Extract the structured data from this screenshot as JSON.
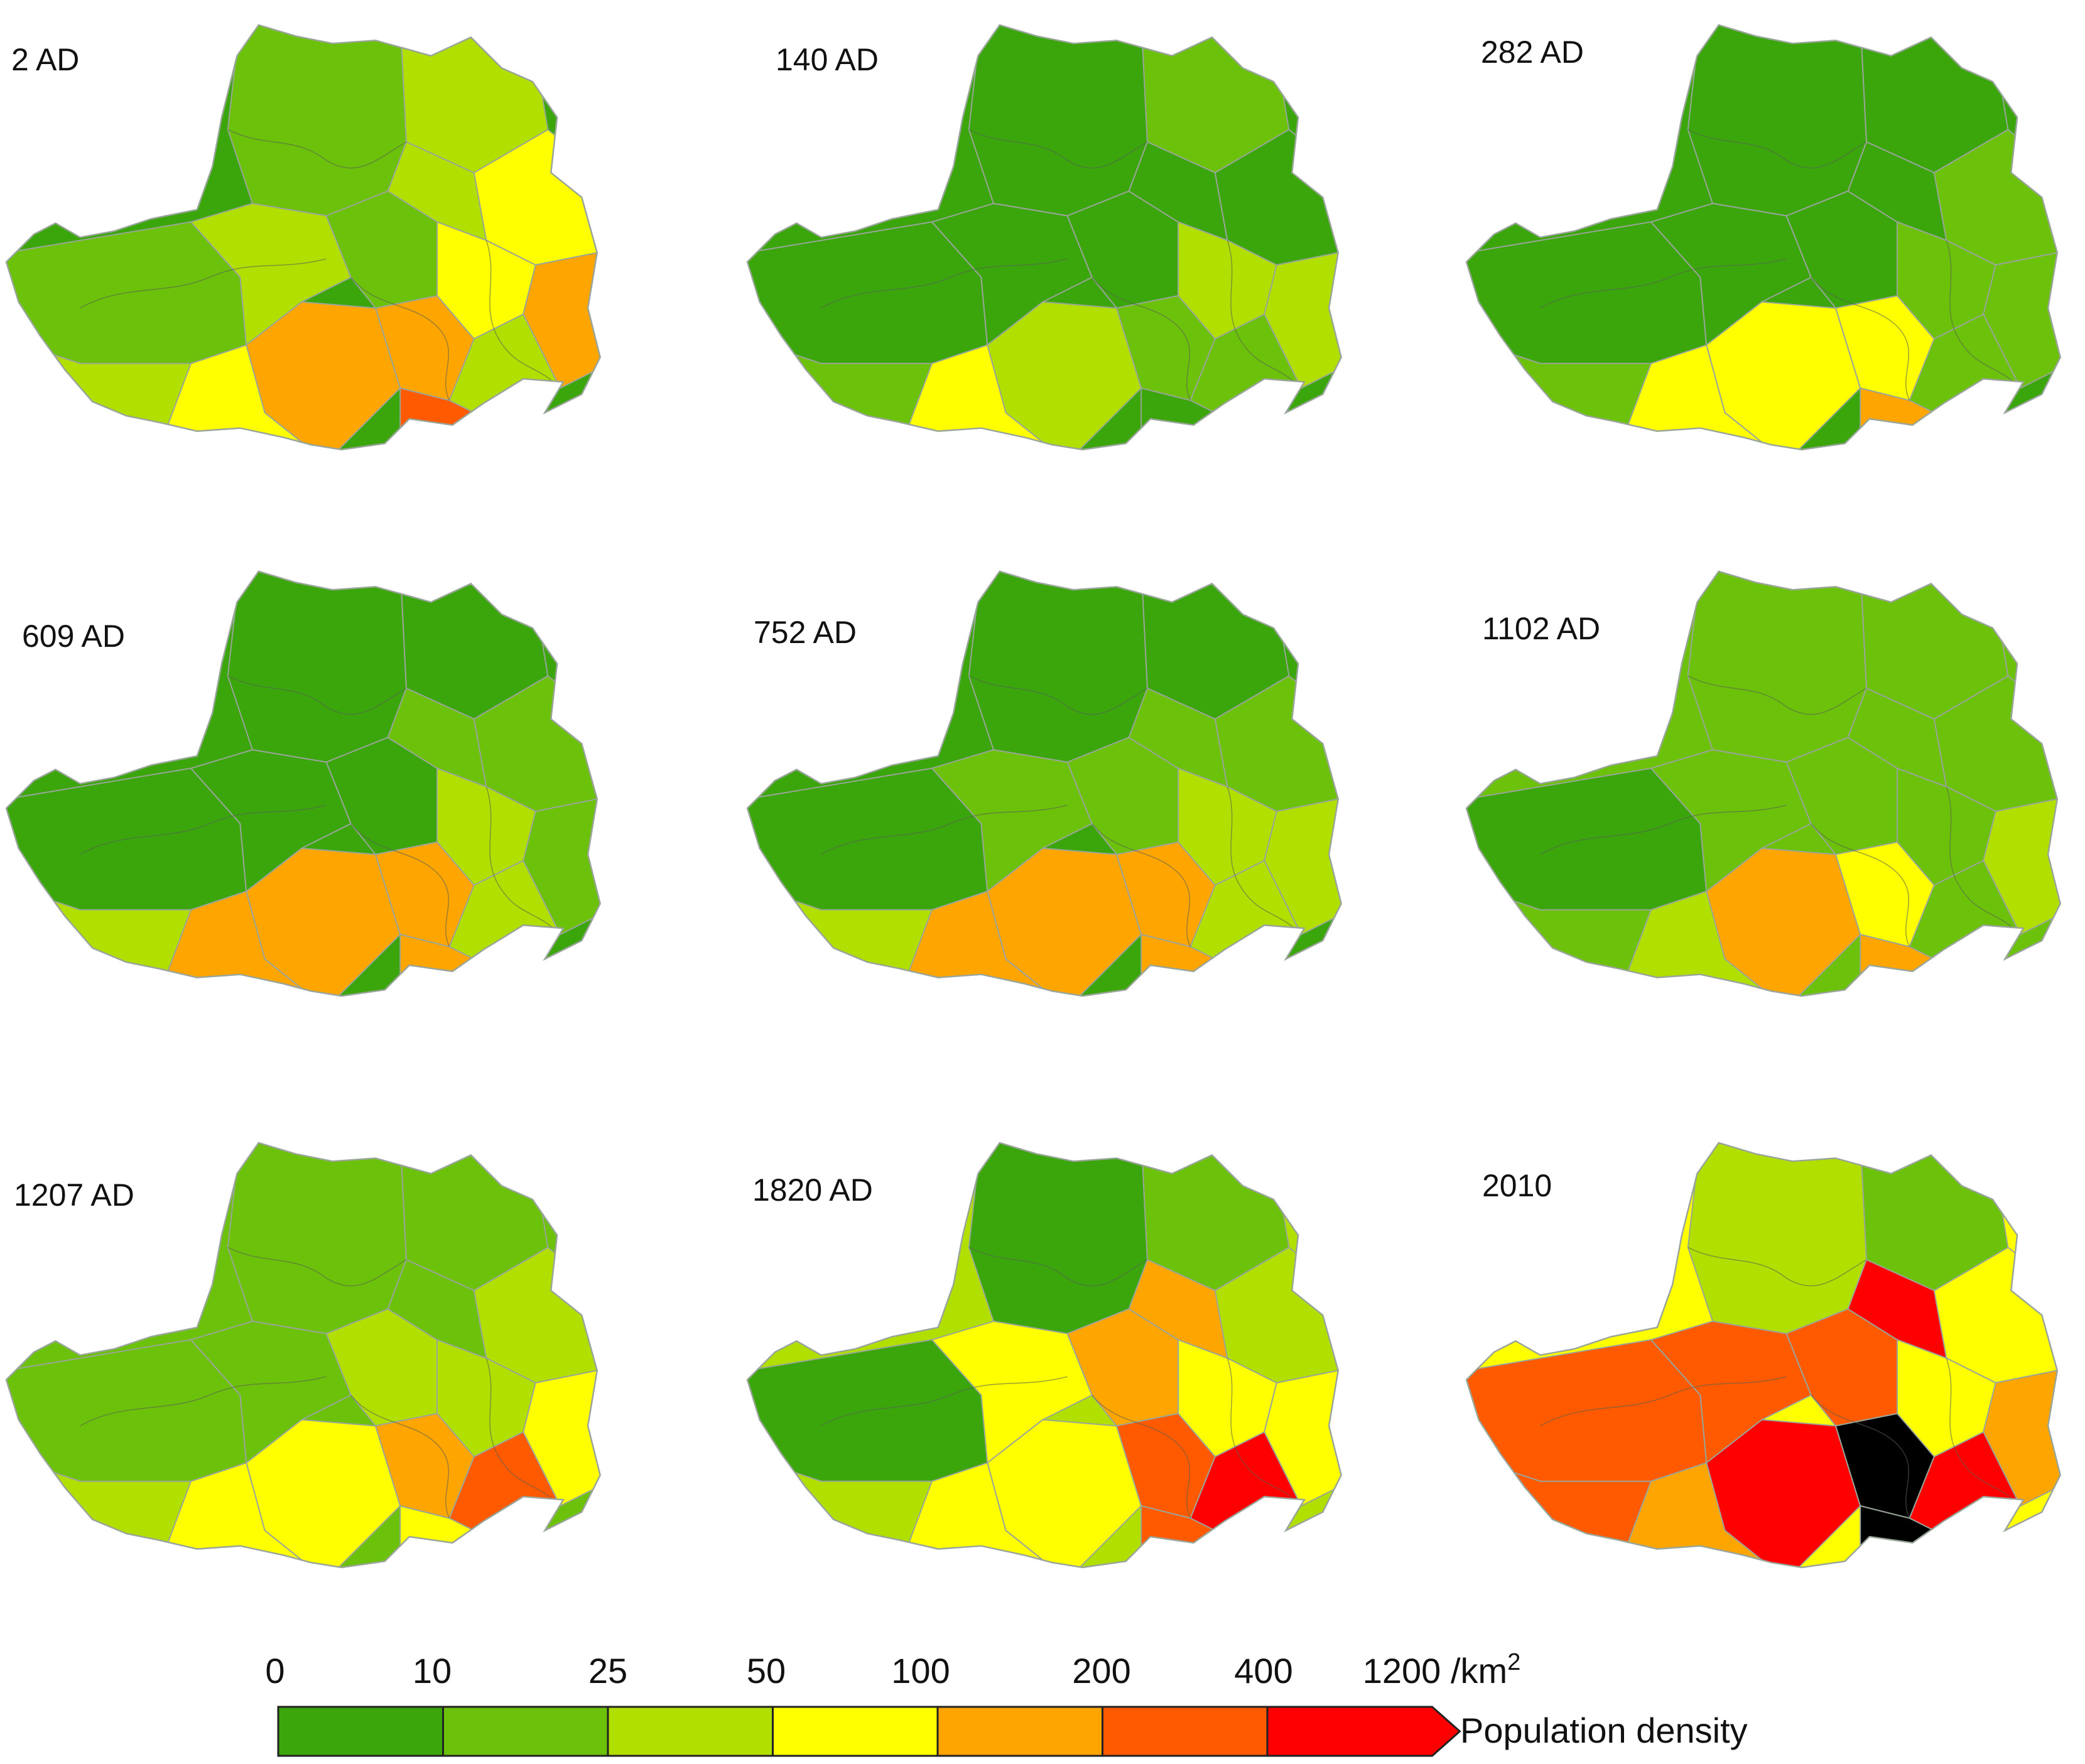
{
  "panels": [
    {
      "label": "2 AD",
      "base": 0,
      "regions": [
        1,
        2,
        1,
        2,
        1,
        2,
        3,
        3,
        4,
        4,
        4,
        2,
        5,
        2,
        3
      ]
    },
    {
      "label": "140 AD",
      "base": 0,
      "regions": [
        0,
        1,
        0,
        0,
        0,
        0,
        0,
        2,
        2,
        2,
        1,
        1,
        0,
        1,
        3
      ]
    },
    {
      "label": "282 AD",
      "base": 0,
      "regions": [
        0,
        0,
        0,
        0,
        0,
        0,
        1,
        1,
        1,
        3,
        3,
        1,
        4,
        1,
        3
      ]
    },
    {
      "label": "609 AD",
      "base": 0,
      "regions": [
        0,
        0,
        0,
        0,
        0,
        1,
        1,
        2,
        1,
        4,
        4,
        2,
        4,
        2,
        4
      ]
    },
    {
      "label": "752 AD",
      "base": 0,
      "regions": [
        0,
        0,
        0,
        1,
        1,
        1,
        1,
        2,
        2,
        4,
        4,
        2,
        4,
        2,
        4
      ]
    },
    {
      "label": "1102 AD",
      "base": 1,
      "regions": [
        1,
        1,
        0,
        1,
        1,
        1,
        1,
        1,
        2,
        4,
        3,
        1,
        4,
        1,
        2
      ]
    },
    {
      "label": "1207 AD",
      "base": 1,
      "regions": [
        1,
        1,
        1,
        1,
        2,
        1,
        2,
        2,
        3,
        3,
        4,
        5,
        3,
        2,
        3
      ]
    },
    {
      "label": "1820 AD",
      "base": 2,
      "regions": [
        0,
        1,
        0,
        3,
        4,
        4,
        2,
        3,
        3,
        3,
        5,
        6,
        5,
        2,
        3
      ]
    },
    {
      "label": "2010",
      "base": 3,
      "regions": [
        2,
        1,
        5,
        5,
        5,
        6,
        3,
        3,
        4,
        6,
        7,
        6,
        7,
        5,
        4
      ]
    }
  ],
  "legend": {
    "title": "Population density",
    "unit": "/km",
    "unit_superscript": "2",
    "ticks": [
      "0",
      "10",
      "25",
      "50",
      "100",
      "200",
      "400",
      "1200"
    ],
    "classes": [
      {
        "range": [
          0,
          10
        ],
        "color": "#3aa60c"
      },
      {
        "range": [
          10,
          25
        ],
        "color": "#6cc10a"
      },
      {
        "range": [
          25,
          50
        ],
        "color": "#b0df00"
      },
      {
        "range": [
          50,
          100
        ],
        "color": "#ffff00"
      },
      {
        "range": [
          100,
          200
        ],
        "color": "#ffa500"
      },
      {
        "range": [
          200,
          400
        ],
        "color": "#ff5a00"
      },
      {
        "range": [
          400,
          1200
        ],
        "color": "#ff0000"
      }
    ]
  },
  "colors": {
    "outline": "#9aa59a",
    "background": "#ffffff"
  }
}
